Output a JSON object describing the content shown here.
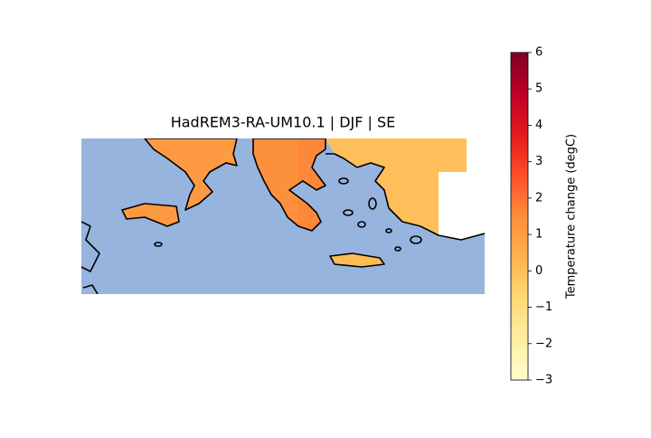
{
  "title": "HadREM3-RA-UM10.1 | DJF | SE",
  "map": {
    "ocean_color": "#97b4df",
    "no_data_color": "#ffffff",
    "cells": [
      1.1,
      1.1,
      1.4,
      1.6,
      0.0,
      0.0,
      0.1
    ]
  },
  "colorbar": {
    "label": "Temperature change (degC)",
    "colormap": "YlOrRd",
    "lim": [
      -3,
      6
    ],
    "ticks": [
      {
        "value": -3,
        "label": "−3"
      },
      {
        "value": -2,
        "label": "−2"
      },
      {
        "value": -1,
        "label": "−1"
      },
      0,
      1,
      2,
      3,
      4,
      5,
      6
    ]
  }
}
